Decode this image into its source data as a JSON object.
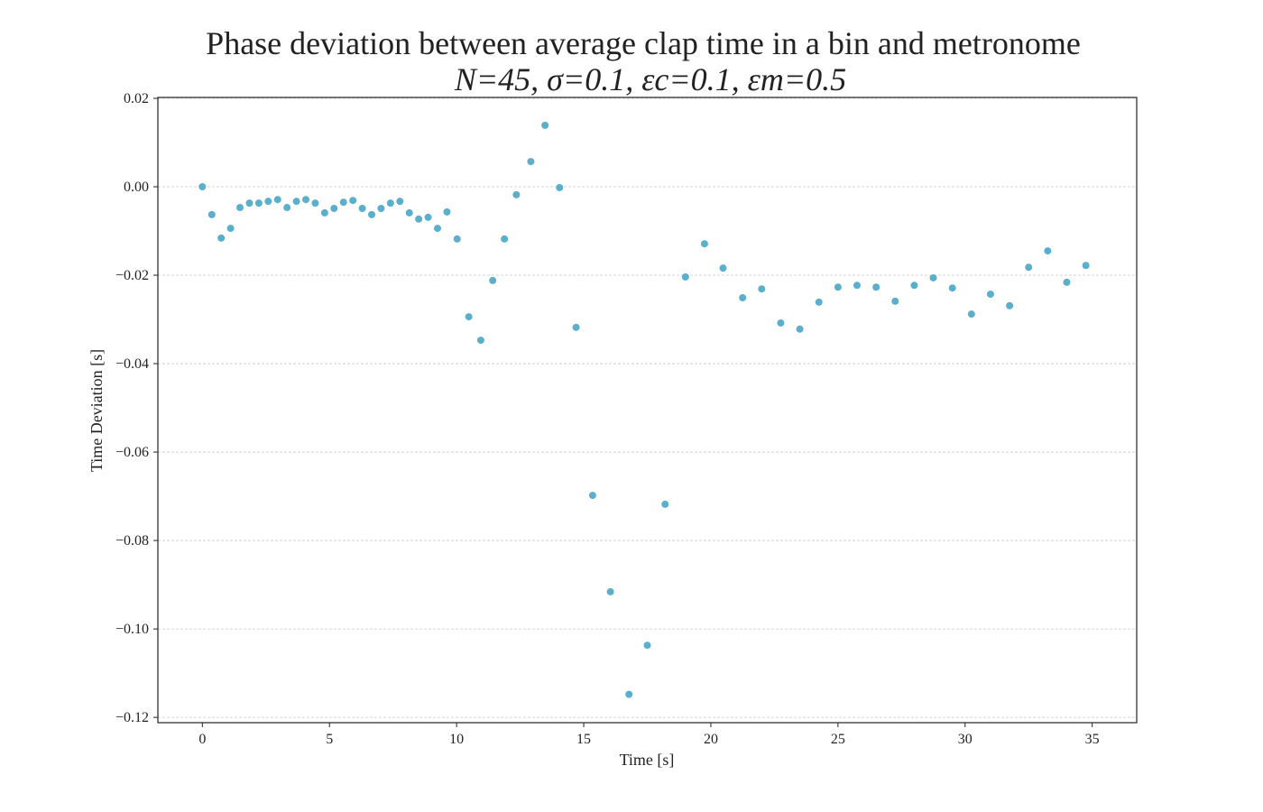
{
  "chart_data": {
    "type": "scatter",
    "title": "Phase deviation between average clap time in a bin and metronome",
    "subtitle": "N=45, σ=0.1, εc=0.1, εm=0.5",
    "xlabel": "Time [s]",
    "ylabel": "Time Deviation [s]",
    "xlim": [
      -1.75,
      36.75
    ],
    "ylim": [
      -0.1212,
      0.0202
    ],
    "xticks": [
      0,
      5,
      10,
      15,
      20,
      25,
      30,
      35
    ],
    "xtick_labels": [
      "0",
      "5",
      "10",
      "15",
      "20",
      "25",
      "30",
      "35"
    ],
    "yticks": [
      0.02,
      0.0,
      -0.02,
      -0.04,
      -0.06,
      -0.08,
      -0.1,
      -0.12
    ],
    "ytick_labels": [
      "0.02",
      "0.00",
      "−0.02",
      "−0.04",
      "−0.06",
      "−0.08",
      "−0.10",
      "−0.12"
    ],
    "grid": "horizontal dashed",
    "color": "#5aafcc",
    "points": [
      {
        "x": 0.0,
        "y": 0.0
      },
      {
        "x": 0.37,
        "y": -0.0063
      },
      {
        "x": 0.74,
        "y": -0.0116
      },
      {
        "x": 1.11,
        "y": -0.0094
      },
      {
        "x": 1.48,
        "y": -0.0047
      },
      {
        "x": 1.85,
        "y": -0.0037
      },
      {
        "x": 2.22,
        "y": -0.0037
      },
      {
        "x": 2.59,
        "y": -0.0033
      },
      {
        "x": 2.96,
        "y": -0.0029
      },
      {
        "x": 3.33,
        "y": -0.0047
      },
      {
        "x": 3.7,
        "y": -0.0033
      },
      {
        "x": 4.07,
        "y": -0.0029
      },
      {
        "x": 4.44,
        "y": -0.0037
      },
      {
        "x": 4.81,
        "y": -0.0059
      },
      {
        "x": 5.18,
        "y": -0.0049
      },
      {
        "x": 5.55,
        "y": -0.0035
      },
      {
        "x": 5.92,
        "y": -0.0031
      },
      {
        "x": 6.29,
        "y": -0.0049
      },
      {
        "x": 6.66,
        "y": -0.0063
      },
      {
        "x": 7.03,
        "y": -0.0049
      },
      {
        "x": 7.4,
        "y": -0.0037
      },
      {
        "x": 7.77,
        "y": -0.0033
      },
      {
        "x": 8.14,
        "y": -0.0059
      },
      {
        "x": 8.51,
        "y": -0.0073
      },
      {
        "x": 8.88,
        "y": -0.0069
      },
      {
        "x": 9.25,
        "y": -0.0094
      },
      {
        "x": 9.62,
        "y": -0.0057
      },
      {
        "x": 10.02,
        "y": -0.0118
      },
      {
        "x": 10.48,
        "y": -0.0294
      },
      {
        "x": 10.95,
        "y": -0.0347
      },
      {
        "x": 11.42,
        "y": -0.0212
      },
      {
        "x": 11.88,
        "y": -0.0118
      },
      {
        "x": 12.35,
        "y": -0.0018
      },
      {
        "x": 12.92,
        "y": 0.0057
      },
      {
        "x": 13.48,
        "y": 0.0139
      },
      {
        "x": 14.05,
        "y": -0.0002
      },
      {
        "x": 14.7,
        "y": -0.0318
      },
      {
        "x": 15.35,
        "y": -0.0698
      },
      {
        "x": 16.05,
        "y": -0.0916
      },
      {
        "x": 16.78,
        "y": -0.1148
      },
      {
        "x": 17.5,
        "y": -0.1037
      },
      {
        "x": 18.2,
        "y": -0.0718
      },
      {
        "x": 19.0,
        "y": -0.0204
      },
      {
        "x": 19.75,
        "y": -0.0129
      },
      {
        "x": 20.48,
        "y": -0.0184
      },
      {
        "x": 21.25,
        "y": -0.0251
      },
      {
        "x": 22.0,
        "y": -0.0231
      },
      {
        "x": 22.75,
        "y": -0.0308
      },
      {
        "x": 23.5,
        "y": -0.0322
      },
      {
        "x": 24.25,
        "y": -0.0261
      },
      {
        "x": 25.0,
        "y": -0.0227
      },
      {
        "x": 25.75,
        "y": -0.0223
      },
      {
        "x": 26.5,
        "y": -0.0227
      },
      {
        "x": 27.25,
        "y": -0.0259
      },
      {
        "x": 28.0,
        "y": -0.0223
      },
      {
        "x": 28.75,
        "y": -0.0206
      },
      {
        "x": 29.5,
        "y": -0.0229
      },
      {
        "x": 30.25,
        "y": -0.0288
      },
      {
        "x": 31.0,
        "y": -0.0243
      },
      {
        "x": 31.75,
        "y": -0.0269
      },
      {
        "x": 32.5,
        "y": -0.0182
      },
      {
        "x": 33.25,
        "y": -0.0145
      },
      {
        "x": 34.0,
        "y": -0.0216
      },
      {
        "x": 34.75,
        "y": -0.0178
      }
    ]
  }
}
